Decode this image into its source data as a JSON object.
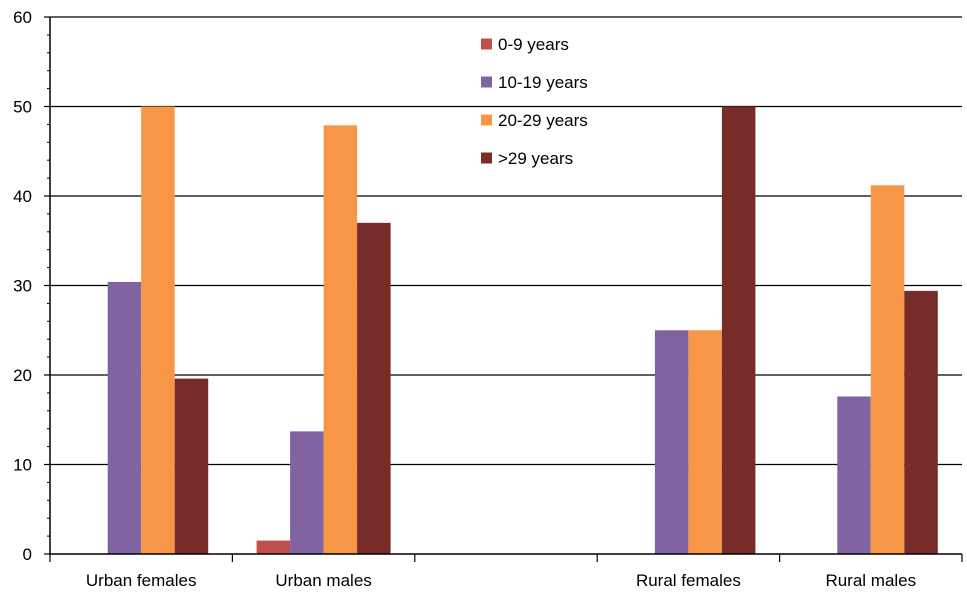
{
  "chart_data": {
    "type": "bar",
    "title": "",
    "xlabel": "",
    "ylabel": "",
    "ylim": [
      0,
      60
    ],
    "yticks": [
      0,
      10,
      20,
      30,
      40,
      50,
      60
    ],
    "grid": "horizontal major",
    "legend_position": "top-center",
    "categories": [
      "Urban females",
      "Urban males",
      "",
      "Rural females",
      "Rural males"
    ],
    "series": [
      {
        "name": "0-9 years",
        "color": "#C0504D",
        "values": [
          0,
          1.5,
          0,
          0,
          0
        ]
      },
      {
        "name": "10-19 years",
        "color": "#8064A2",
        "values": [
          30.4,
          13.7,
          0,
          25,
          17.6
        ]
      },
      {
        "name": "20-29 years",
        "color": "#F79646",
        "values": [
          50,
          47.9,
          0,
          25,
          41.2
        ]
      },
      {
        "name": ">29 years",
        "color": "#772C2A",
        "values": [
          19.6,
          37,
          0,
          50,
          29.4
        ]
      }
    ]
  }
}
